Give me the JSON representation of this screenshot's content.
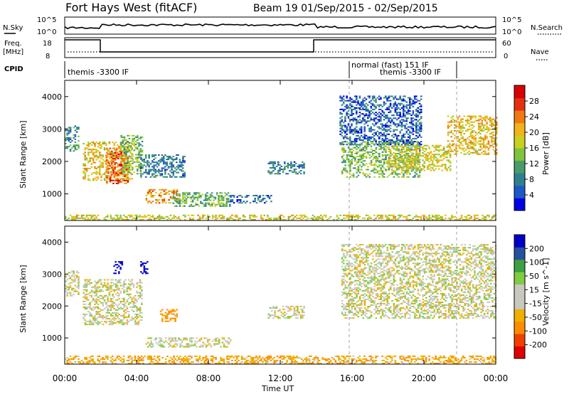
{
  "header": {
    "station": "Fort Hays West (fitACF)",
    "beam_dates": "Beam 19  01/Sep/2015 - 02/Sep/2015"
  },
  "left_labels": {
    "nsky": "N.Sky",
    "freq": "Freq.",
    "freq_unit": "[MHz]",
    "cpid": "CPID"
  },
  "right_labels": {
    "nsearch": "N.Search",
    "nave": "Nave"
  },
  "nsky_ticks": {
    "top": "10^5",
    "bottom": "10^0"
  },
  "nsearch_ticks": {
    "top": "10^5",
    "bottom": "10^0"
  },
  "freq_ticks": {
    "top": "18",
    "bottom": "8"
  },
  "nave_ticks": {
    "top": "60",
    "bottom": "0"
  },
  "cpid_segments": [
    {
      "label": "themis -3300 IF"
    },
    {
      "label": "normal (fast) 151 IF"
    },
    {
      "label": "themis -3300 IF"
    }
  ],
  "chart_data": [
    {
      "type": "heatmap",
      "panel": "power",
      "ylabel": "Slant Range [km]",
      "xlabel": "Time UT",
      "xlim": [
        "00:00",
        "24:00"
      ],
      "ylim": [
        180,
        4500
      ],
      "x_ticklabels": [
        "00:00",
        "04:00",
        "08:00",
        "12:00",
        "16:00",
        "20:00",
        "00:00"
      ],
      "y_ticklabels": [
        "1000",
        "2000",
        "3000",
        "4000"
      ],
      "colorbar": {
        "label": "Power [dB]",
        "range": [
          0,
          32
        ],
        "ticks": [
          "4",
          "8",
          "12",
          "16",
          "20",
          "24",
          "28"
        ]
      },
      "echo_regions": [
        {
          "t": [
            0.0,
            0.8
          ],
          "range": [
            2300,
            3100
          ],
          "value": 10
        },
        {
          "t": [
            1.0,
            3.7
          ],
          "range": [
            1400,
            2600
          ],
          "value": 20
        },
        {
          "t": [
            2.3,
            3.5
          ],
          "range": [
            1300,
            2400
          ],
          "value": 26
        },
        {
          "t": [
            3.1,
            4.3
          ],
          "range": [
            1600,
            2800
          ],
          "value": 14
        },
        {
          "t": [
            4.2,
            6.7
          ],
          "range": [
            1500,
            2200
          ],
          "value": 8
        },
        {
          "t": [
            4.5,
            6.3
          ],
          "range": [
            700,
            1150
          ],
          "value": 22
        },
        {
          "t": [
            6.0,
            9.2
          ],
          "range": [
            600,
            1050
          ],
          "value": 12
        },
        {
          "t": [
            9.2,
            11.5
          ],
          "range": [
            700,
            950
          ],
          "value": 6
        },
        {
          "t": [
            11.3,
            13.3
          ],
          "range": [
            1600,
            2000
          ],
          "value": 8
        },
        {
          "t": [
            15.4,
            19.8
          ],
          "range": [
            1500,
            2600
          ],
          "value": 14
        },
        {
          "t": [
            18.0,
            21.5
          ],
          "range": [
            1700,
            2500
          ],
          "value": 18
        },
        {
          "t": [
            21.3,
            24.0
          ],
          "range": [
            2200,
            3400
          ],
          "value": 20
        },
        {
          "t": [
            15.3,
            19.8
          ],
          "range": [
            2500,
            4000
          ],
          "value": 6
        },
        {
          "t": [
            0.0,
            24.0
          ],
          "range": [
            180,
            320
          ],
          "value": 18
        }
      ]
    },
    {
      "type": "heatmap",
      "panel": "velocity",
      "ylabel": "Slant Range [km]",
      "xlabel": "Time UT",
      "xlim": [
        "00:00",
        "24:00"
      ],
      "ylim": [
        180,
        4500
      ],
      "x_ticklabels": [
        "00:00",
        "04:00",
        "08:00",
        "12:00",
        "16:00",
        "20:00",
        "00:00"
      ],
      "y_ticklabels": [
        "1000",
        "2000",
        "3000",
        "4000"
      ],
      "colorbar": {
        "label": "Velocity [m s^-1]",
        "ticks": [
          "200",
          "100",
          "50",
          "15",
          "-15",
          "-50",
          "-100",
          "-200"
        ]
      },
      "echo_regions": [
        {
          "t": [
            0.0,
            0.8
          ],
          "range": [
            2300,
            3100
          ],
          "value": 0
        },
        {
          "t": [
            1.0,
            4.3
          ],
          "range": [
            1400,
            2800
          ],
          "value": 0
        },
        {
          "t": [
            2.7,
            3.2
          ],
          "range": [
            3000,
            3400
          ],
          "value": 200
        },
        {
          "t": [
            4.2,
            4.6
          ],
          "range": [
            3000,
            3400
          ],
          "value": 200
        },
        {
          "t": [
            5.3,
            6.2
          ],
          "range": [
            1500,
            1900
          ],
          "value": -60
        },
        {
          "t": [
            4.5,
            9.2
          ],
          "range": [
            700,
            1000
          ],
          "value": 0
        },
        {
          "t": [
            11.3,
            13.3
          ],
          "range": [
            1600,
            2000
          ],
          "value": 0
        },
        {
          "t": [
            15.4,
            24.0
          ],
          "range": [
            1600,
            3900
          ],
          "value": 0
        },
        {
          "t": [
            0.0,
            24.0
          ],
          "range": [
            180,
            420
          ],
          "value": -40
        }
      ]
    }
  ],
  "colors": {
    "power_scale": [
      "#0000e6",
      "#1d57c8",
      "#2e7f8f",
      "#4a9a6a",
      "#7fc43c",
      "#c8d020",
      "#f2b21a",
      "#f07a10",
      "#e43010",
      "#d80000"
    ],
    "velocity_scale": [
      "#e00000",
      "#f04000",
      "#ff8c00",
      "#f0b000",
      "#c8c8c0",
      "#c8c8c0",
      "#80cc40",
      "#3ca040",
      "#2850a0",
      "#0000c8"
    ],
    "dashed_line": "#a0a0a0"
  }
}
